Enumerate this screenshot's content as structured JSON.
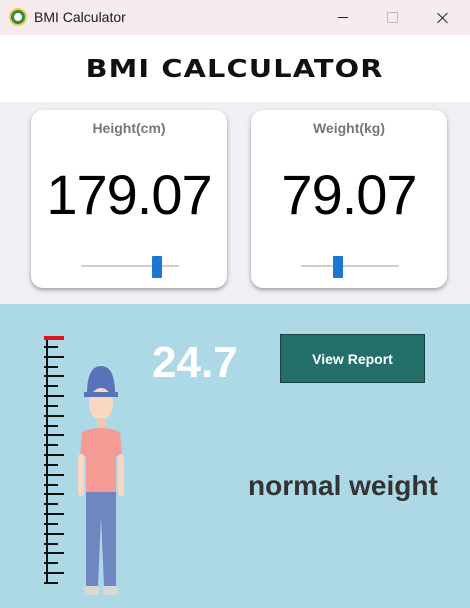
{
  "window": {
    "title": "BMI Calculator"
  },
  "header": {
    "title": "BMI CALCULATOR"
  },
  "height_card": {
    "label": "Height(cm)",
    "value": "179.07",
    "slider_fraction": 0.78
  },
  "weight_card": {
    "label": "Weight(kg)",
    "value": "79.07",
    "slider_fraction": 0.38
  },
  "result": {
    "bmi": "24.7",
    "report_button": "View Report",
    "status": "normal weight"
  },
  "colors": {
    "accent_blue": "#1a78d2",
    "result_bg": "#add8e6",
    "report_button": "#236f69",
    "ruler_marker": "#e0141a"
  }
}
